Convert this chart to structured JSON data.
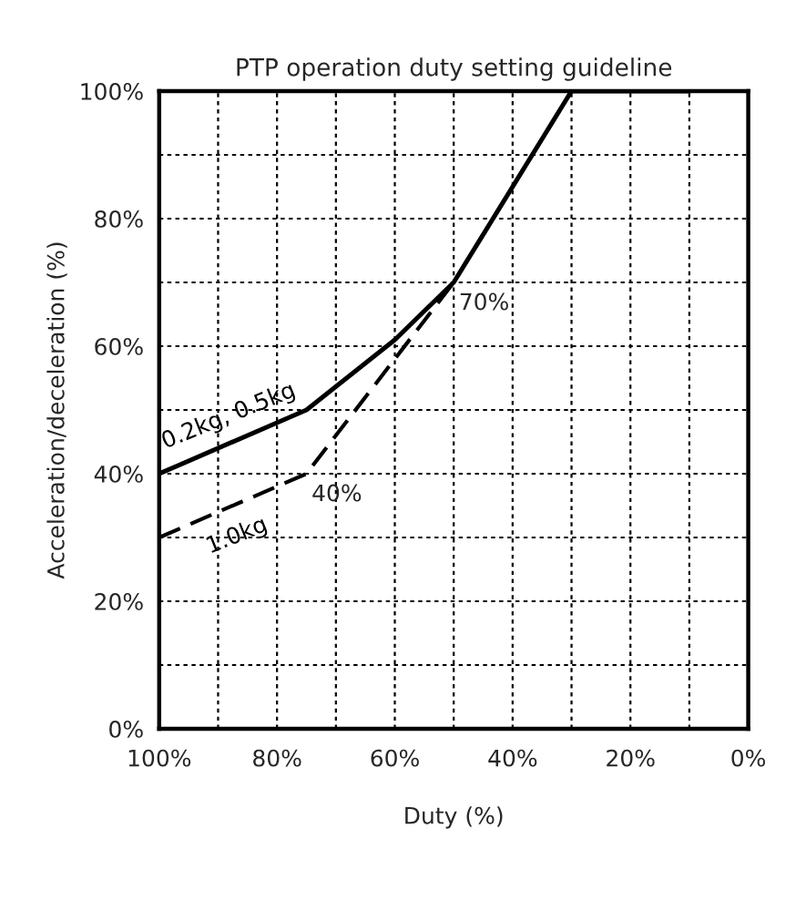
{
  "chart_data": {
    "type": "line",
    "title": "PTP operation duty setting guideline",
    "xlabel": "Duty (%)",
    "ylabel": "Acceleration/deceleration (%)",
    "series": [
      {
        "name": "0.2kg, 0.5kg",
        "color": "#000000",
        "line_style": "solid",
        "x": [
          100,
          75,
          60,
          50,
          30,
          10
        ],
        "values": [
          40,
          50,
          61,
          70,
          100,
          100
        ]
      },
      {
        "name": "1.0kg",
        "color": "#000000",
        "line_style": "dashed",
        "x": [
          100,
          75,
          50,
          30,
          10
        ],
        "values": [
          30,
          40,
          70,
          100,
          100
        ]
      }
    ],
    "annotations": [
      {
        "text": "40%",
        "x": 75,
        "y": 40
      },
      {
        "text": "70%",
        "x": 50,
        "y": 70
      }
    ],
    "xlim": [
      100,
      0
    ],
    "ylim": [
      0,
      100
    ],
    "xticks": [
      {
        "value": 100,
        "label": "100%"
      },
      {
        "value": 90,
        "label": null
      },
      {
        "value": 80,
        "label": "80%"
      },
      {
        "value": 70,
        "label": null
      },
      {
        "value": 60,
        "label": "60%"
      },
      {
        "value": 50,
        "label": null
      },
      {
        "value": 40,
        "label": "40%"
      },
      {
        "value": 30,
        "label": null
      },
      {
        "value": 20,
        "label": "20%"
      },
      {
        "value": 10,
        "label": null
      },
      {
        "value": 0,
        "label": "0%"
      }
    ],
    "yticks": [
      {
        "value": 0,
        "label": "0%"
      },
      {
        "value": 10,
        "label": null
      },
      {
        "value": 20,
        "label": "20%"
      },
      {
        "value": 30,
        "label": null
      },
      {
        "value": 40,
        "label": "40%"
      },
      {
        "value": 50,
        "label": null
      },
      {
        "value": 60,
        "label": "60%"
      },
      {
        "value": 70,
        "label": null
      },
      {
        "value": 80,
        "label": "80%"
      },
      {
        "value": 90,
        "label": null
      },
      {
        "value": 100,
        "label": "100%"
      }
    ],
    "grid": true,
    "legend": false,
    "marker": "none"
  }
}
